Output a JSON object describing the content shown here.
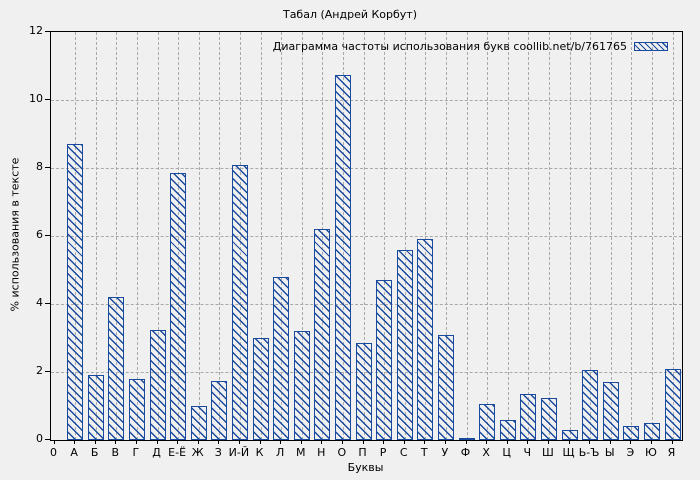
{
  "title": "Табал (Андрей Корбут)",
  "legend": {
    "label": "Диаграмма частоты использования букв coollib.net/b/761765"
  },
  "axes": {
    "ylabel": "% использования в тексте",
    "xlabel": "Буквы",
    "y_ticks": [
      0,
      2,
      4,
      6,
      8,
      10,
      12
    ],
    "x_origin_label": "0"
  },
  "colors": {
    "bar": "#1a4a9e",
    "grid": "#a9a9a9",
    "frame": "#000000",
    "background": "#f0f0f0",
    "text": "#000000"
  },
  "chart_data": {
    "type": "bar",
    "title": "Табал (Андрей Корбут)",
    "series_label": "Диаграмма частоты использования букв coollib.net/b/761765",
    "categories": [
      "А",
      "Б",
      "В",
      "Г",
      "Д",
      "Е-Ё",
      "Ж",
      "З",
      "И-Й",
      "К",
      "Л",
      "М",
      "Н",
      "О",
      "П",
      "Р",
      "С",
      "Т",
      "У",
      "Ф",
      "Х",
      "Ц",
      "Ч",
      "Ш",
      "Щ",
      "Ь-Ъ",
      "Ы",
      "Э",
      "Ю",
      "Я"
    ],
    "values": [
      8.7,
      1.9,
      4.2,
      1.8,
      3.25,
      7.85,
      1.0,
      1.75,
      8.1,
      3.0,
      4.8,
      3.2,
      6.2,
      10.75,
      2.85,
      4.7,
      5.6,
      5.9,
      3.1,
      0.05,
      1.05,
      0.6,
      1.35,
      1.25,
      0.3,
      2.05,
      1.7,
      0.4,
      0.5,
      2.1
    ],
    "xlabel": "Буквы",
    "ylabel": "% использования в тексте",
    "ylim": [
      0,
      12
    ],
    "x_origin_label": "0",
    "grid": true,
    "grid_style": "dashed",
    "bar_style": "hatched-diagonal",
    "legend_position": "top-right-inside"
  }
}
